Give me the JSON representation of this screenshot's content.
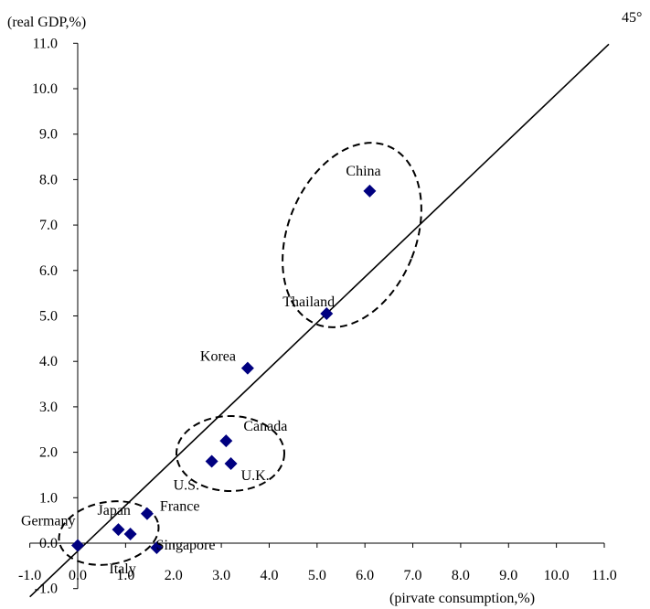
{
  "chart_data": {
    "type": "scatter",
    "title": "",
    "xlabel": "(pirvate consumption,%)",
    "ylabel": "(real GDP,%)",
    "xlim": [
      -1.0,
      11.0
    ],
    "ylim": [
      -1.0,
      11.0
    ],
    "x_ticks": [
      "-1.0",
      "0.0",
      "1.0",
      "2.0",
      "3.0",
      "4.0",
      "5.0",
      "6.0",
      "7.0",
      "8.0",
      "9.0",
      "10.0",
      "11.0"
    ],
    "y_ticks": [
      "-1.0",
      "0.0",
      "1.0",
      "2.0",
      "3.0",
      "4.0",
      "5.0",
      "6.0",
      "7.0",
      "8.0",
      "9.0",
      "10.0",
      "11.0"
    ],
    "reference_line": {
      "label": "45°",
      "from": [
        -1.0,
        -1.0
      ],
      "to": [
        11.0,
        11.0
      ]
    },
    "grid": false,
    "legend": "none",
    "marker_color": "#000080",
    "points": [
      {
        "label": "China",
        "x": 6.1,
        "y": 7.75
      },
      {
        "label": "Thailand",
        "x": 5.2,
        "y": 5.05
      },
      {
        "label": "Korea",
        "x": 3.55,
        "y": 3.85
      },
      {
        "label": "Canada",
        "x": 3.1,
        "y": 2.25
      },
      {
        "label": "U.S.",
        "x": 2.8,
        "y": 1.8
      },
      {
        "label": "U.K.",
        "x": 3.2,
        "y": 1.75
      },
      {
        "label": "Japan",
        "x": 0.85,
        "y": 0.3
      },
      {
        "label": "France",
        "x": 1.45,
        "y": 0.65
      },
      {
        "label": "Singapore",
        "x": 1.1,
        "y": 0.2
      },
      {
        "label": "Germany",
        "x": 0.0,
        "y": -0.05
      },
      {
        "label": "Italy",
        "x": 1.65,
        "y": -0.1
      }
    ],
    "clusters": [
      {
        "members": [
          "China",
          "Thailand"
        ]
      },
      {
        "members": [
          "Canada",
          "U.S.",
          "U.K."
        ]
      },
      {
        "members": [
          "Japan",
          "France",
          "Singapore",
          "Germany",
          "Italy"
        ]
      }
    ]
  }
}
